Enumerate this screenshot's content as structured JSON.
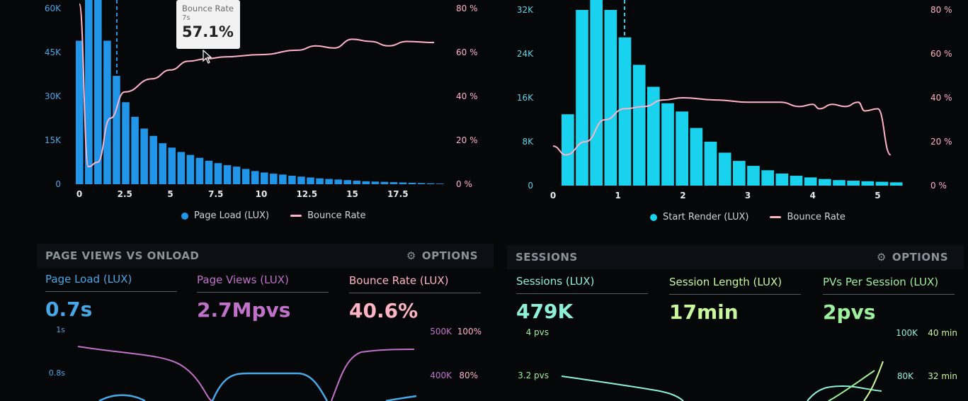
{
  "colors": {
    "blue_bar": "#2196e8",
    "cyan_bar": "#18d2ee",
    "pink": "#ffb3c6",
    "purple": "#c071c9",
    "green": "#9df09c",
    "light_green": "#c8f79c",
    "teal": "#8ff0da",
    "axis_blue": "#47a8e8",
    "axis_cyan": "#5fd4e6"
  },
  "tooltip": {
    "title": "Bounce Rate",
    "sub": "7s",
    "value": "57.1%"
  },
  "chart_data": [
    {
      "type": "bar",
      "name_key": "page_load",
      "x_ticks": [
        "0",
        "2.5",
        "5",
        "7.5",
        "10",
        "12.5",
        "15",
        "17.5"
      ],
      "y_left_ticks": [
        "0",
        "15K",
        "30K",
        "45K",
        "60K"
      ],
      "y_right_ticks": [
        "0 %",
        "20 %",
        "40 %",
        "60 %",
        "80 %"
      ],
      "bar_values": [
        49000,
        64000,
        64000,
        49000,
        37000,
        28000,
        23000,
        19000,
        16500,
        14000,
        12500,
        11000,
        10000,
        9000,
        8000,
        7200,
        6500,
        6000,
        5200,
        4500,
        4000,
        3600,
        3300,
        2900,
        2600,
        2300,
        2000,
        1800,
        1600,
        1400,
        1200,
        1000,
        900,
        800,
        700,
        600,
        500,
        400,
        300,
        200
      ],
      "line_values": [
        [
          0,
          82
        ],
        [
          0.5,
          8
        ],
        [
          1,
          10
        ],
        [
          1.7,
          30
        ],
        [
          2.5,
          42
        ],
        [
          4,
          48
        ],
        [
          5,
          52
        ],
        [
          6,
          56
        ],
        [
          7,
          57.1
        ],
        [
          8,
          58
        ],
        [
          10,
          59
        ],
        [
          12,
          61
        ],
        [
          13,
          63
        ],
        [
          14,
          62
        ],
        [
          15,
          66
        ],
        [
          16,
          65
        ],
        [
          17,
          63
        ],
        [
          18,
          65
        ],
        [
          19.5,
          64.5
        ]
      ],
      "series": [
        {
          "name": "Page Load (LUX)",
          "color": "#2196e8"
        },
        {
          "name": "Bounce Rate",
          "color": "#ffb3c6"
        }
      ],
      "ylim_left": [
        0,
        60000
      ],
      "ylim_right": [
        0,
        80
      ],
      "xlim": [
        0,
        20
      ]
    },
    {
      "type": "bar",
      "name_key": "start_render",
      "x_ticks": [
        "0",
        "1",
        "2",
        "3",
        "4",
        "5"
      ],
      "y_left_ticks": [
        "0",
        "8K",
        "16K",
        "24K",
        "32K"
      ],
      "y_right_ticks": [
        "0 %",
        "20 %",
        "40 %",
        "60 %",
        "80 %"
      ],
      "bar_values": [
        13000,
        32000,
        34000,
        32000,
        27000,
        22000,
        18000,
        15000,
        13500,
        10500,
        8000,
        6000,
        4500,
        3600,
        2800,
        2200,
        1800,
        1500,
        1200,
        1000,
        900,
        800,
        700,
        600
      ],
      "line_values": [
        [
          0,
          18
        ],
        [
          0.2,
          14
        ],
        [
          0.5,
          20
        ],
        [
          0.8,
          30
        ],
        [
          1.1,
          35
        ],
        [
          1.4,
          36
        ],
        [
          1.7,
          39
        ],
        [
          2,
          40
        ],
        [
          2.5,
          39
        ],
        [
          3,
          38
        ],
        [
          3.5,
          38
        ],
        [
          3.8,
          36
        ],
        [
          4,
          37
        ],
        [
          4.1,
          35
        ],
        [
          4.3,
          37
        ],
        [
          4.5,
          36
        ],
        [
          4.7,
          38
        ],
        [
          4.8,
          34
        ],
        [
          5,
          35
        ],
        [
          5.2,
          14
        ]
      ],
      "series": [
        {
          "name": "Start Render (LUX)",
          "color": "#18d2ee"
        },
        {
          "name": "Bounce Rate",
          "color": "#ffb3c6"
        }
      ],
      "ylim_left": [
        0,
        32000
      ],
      "ylim_right": [
        0,
        80
      ],
      "xlim": [
        0,
        5.3
      ]
    }
  ],
  "sections": {
    "left": {
      "title": "PAGE VIEWS VS ONLOAD",
      "options": "OPTIONS",
      "metrics": [
        {
          "label": "Page Load (LUX)",
          "value": "0.7s",
          "color": "#47a8e8"
        },
        {
          "label": "Page Views (LUX)",
          "value": "2.7Mpvs",
          "color": "#c071c9"
        },
        {
          "label": "Bounce Rate (LUX)",
          "value": "40.6%",
          "color": "#ffb3c6"
        }
      ],
      "y_left_ticks": [
        "1s",
        "0.8s"
      ],
      "y_right_ticks_a": [
        "500K",
        "400K"
      ],
      "y_right_ticks_b": [
        "100%",
        "80%"
      ]
    },
    "right": {
      "title": "SESSIONS",
      "options": "OPTIONS",
      "metrics": [
        {
          "label": "Sessions (LUX)",
          "value": "479K",
          "color": "#8ff0da"
        },
        {
          "label": "Session Length (LUX)",
          "value": "17min",
          "color": "#c8f79c"
        },
        {
          "label": "PVs Per Session (LUX)",
          "value": "2pvs",
          "color": "#9df09c"
        }
      ],
      "y_left_ticks": [
        "4 pvs",
        "3.2 pvs"
      ],
      "y_right_ticks_a": [
        "100K",
        "80K"
      ],
      "y_right_ticks_b": [
        "40 min",
        "32 min"
      ]
    }
  }
}
